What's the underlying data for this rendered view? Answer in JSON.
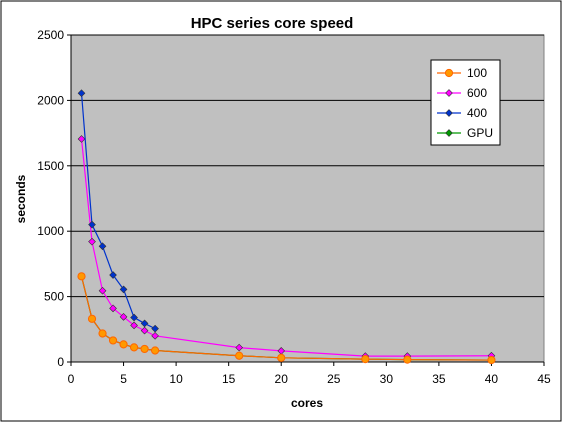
{
  "chart_data": {
    "type": "line",
    "title": "HPC series core speed",
    "xlabel": "cores",
    "ylabel": "seconds",
    "xlim": [
      0,
      45
    ],
    "ylim": [
      0,
      2500
    ],
    "x_ticks": [
      0,
      5,
      10,
      15,
      20,
      25,
      30,
      35,
      40,
      45
    ],
    "y_ticks": [
      0,
      500,
      1000,
      1500,
      2000,
      2500
    ],
    "grid": "horizontal",
    "plot_background": "#c0c0c0",
    "legend_position": "top-right",
    "series": [
      {
        "name": "100",
        "color": "#ff6600",
        "marker": "circle",
        "points": [
          [
            1,
            655
          ],
          [
            2,
            330
          ],
          [
            3,
            218
          ],
          [
            4,
            165
          ],
          [
            5,
            135
          ],
          [
            6,
            112
          ],
          [
            7,
            100
          ],
          [
            8,
            88
          ],
          [
            16,
            48
          ],
          [
            20,
            32
          ],
          [
            28,
            22
          ],
          [
            32,
            18
          ],
          [
            40,
            15
          ]
        ]
      },
      {
        "name": "600",
        "color": "#ff00ff",
        "marker": "diamond",
        "points": [
          [
            1,
            1705
          ],
          [
            2,
            920
          ],
          [
            3,
            545
          ],
          [
            4,
            410
          ],
          [
            5,
            345
          ],
          [
            6,
            280
          ],
          [
            7,
            240
          ],
          [
            8,
            200
          ],
          [
            16,
            110
          ],
          [
            20,
            85
          ],
          [
            28,
            45
          ],
          [
            32,
            45
          ],
          [
            40,
            48
          ]
        ]
      },
      {
        "name": "400",
        "color": "#0033cc",
        "marker": "diamond",
        "points": [
          [
            1,
            2055
          ],
          [
            2,
            1050
          ],
          [
            3,
            885
          ],
          [
            4,
            665
          ],
          [
            5,
            555
          ],
          [
            6,
            340
          ],
          [
            7,
            295
          ],
          [
            8,
            255
          ]
        ]
      },
      {
        "name": "GPU",
        "color": "#009900",
        "marker": "diamond",
        "points": [
          [
            1,
            655
          ],
          [
            2,
            330
          ],
          [
            3,
            218
          ],
          [
            4,
            165
          ],
          [
            5,
            135
          ],
          [
            6,
            112
          ],
          [
            7,
            100
          ],
          [
            8,
            88
          ],
          [
            16,
            48
          ],
          [
            20,
            32
          ],
          [
            28,
            22
          ],
          [
            32,
            18
          ],
          [
            40,
            15
          ]
        ]
      }
    ]
  }
}
